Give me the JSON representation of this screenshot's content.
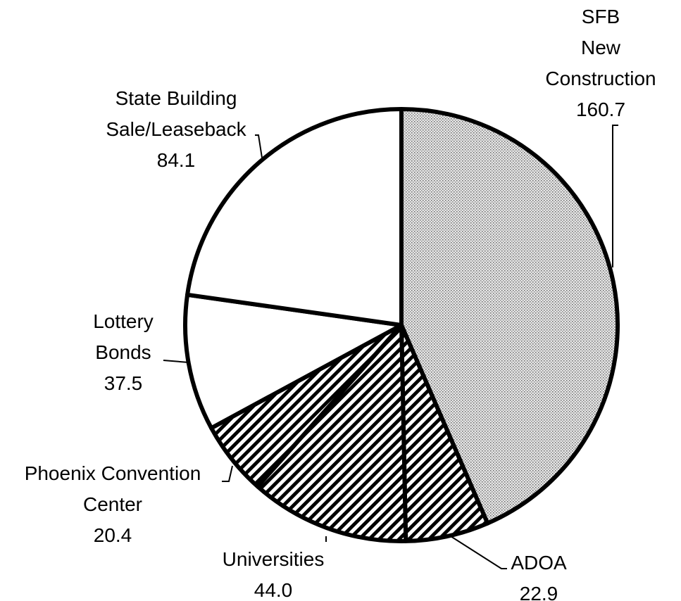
{
  "chart_data": {
    "type": "pie",
    "categories": [
      "SFB\nNew\nConstruction",
      "ADOA",
      "Universities",
      "Phoenix Convention\nCenter",
      "Lottery\nBonds",
      "State Building\nSale/Leaseback"
    ],
    "values": [
      160.7,
      22.9,
      44.0,
      20.4,
      37.5,
      84.1
    ],
    "value_labels": [
      "160.7",
      "22.9",
      "44.0",
      "20.4",
      "37.5",
      "84.1"
    ],
    "patterns": [
      "dots",
      "hatch",
      "hatch",
      "hatch",
      "none",
      "none"
    ]
  }
}
